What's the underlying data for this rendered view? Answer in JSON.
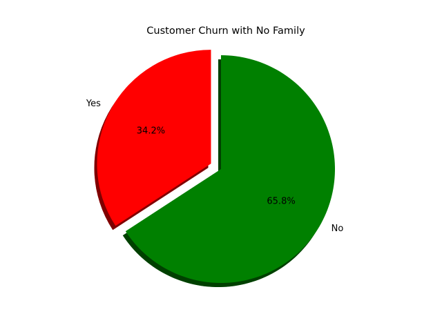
{
  "chart_data": {
    "type": "pie",
    "title": "Customer Churn with No Family",
    "slices": [
      {
        "label": "No",
        "value": 65.8,
        "percent_label": "65.8%",
        "color": "#008000",
        "exploded": false
      },
      {
        "label": "Yes",
        "value": 34.2,
        "percent_label": "34.2%",
        "color": "#ff0000",
        "exploded": true
      }
    ],
    "start_angle": 90,
    "direction": "clockwise",
    "shadow": true,
    "legend": "none"
  }
}
